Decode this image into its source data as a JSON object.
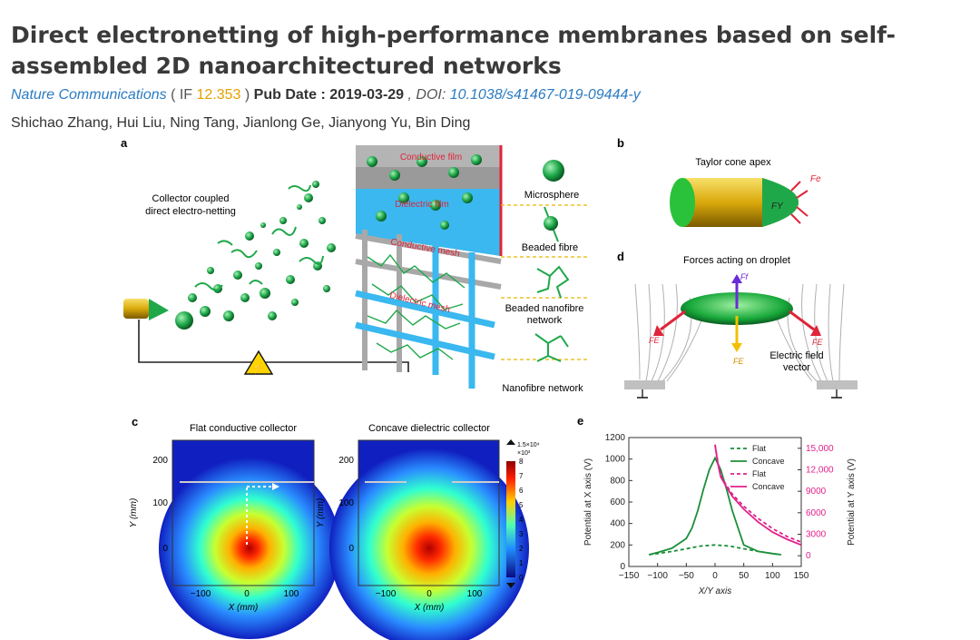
{
  "paper": {
    "title": "Direct electronetting of high-performance membranes based on self-assembled 2D nanoarchitectured networks",
    "journal": "Nature Communications",
    "if_open": " ( IF ",
    "impact_factor": "12.353",
    "if_close": " ) ",
    "pub_date_label": "Pub Date : 2019-03-29",
    "doi_label": " , DOI: ",
    "doi": "10.1038/s41467-019-09444-y",
    "authors": "Shichao Zhang, Hui Liu, Ning Tang, Jianlong Ge, Jianyong Yu, Bin Ding"
  },
  "figure": {
    "panel_a": {
      "letter": "a",
      "collector_label_1": "Collector coupled",
      "collector_label_2": "direct electro-netting",
      "layer_1": "Conductive film",
      "layer_2": "Dielectric film",
      "layer_3": "Conductive mesh",
      "layer_4": "Dielectric mesh",
      "legend_1": "Microsphere",
      "legend_2": "Beaded fibre",
      "legend_3a": "Beaded nanofibre",
      "legend_3b": "network",
      "legend_4": "Nanofibre network"
    },
    "panel_b": {
      "letter": "b",
      "label": "Taylor cone apex",
      "fe": "Fe",
      "fy": "FY"
    },
    "panel_d": {
      "letter": "d",
      "label": "Forces acting on droplet",
      "ff": "Ff",
      "fe_left": "FE",
      "fe_right": "FE",
      "fe_down": "FE",
      "field_1": "Electric field",
      "field_2": "vector"
    },
    "panel_c": {
      "letter": "c",
      "left_title": "Flat conductive collector",
      "right_title": "Concave dielectric collector",
      "ylabel": "Y (mm)",
      "xlabel": "X (mm)",
      "yticks": [
        "200",
        "100",
        "0"
      ],
      "xticks": [
        "−100",
        "0",
        "100"
      ],
      "colorbar_top": "1.5×10⁴",
      "colorbar_exp": "×10³",
      "colorbar_ticks": [
        "8",
        "7",
        "6",
        "5",
        "4",
        "3",
        "2",
        "1",
        "0"
      ]
    }
  },
  "chart_data": {
    "type": "line",
    "panel_letter": "e",
    "title": "",
    "xlabel": "X/Y axis",
    "ylabel_left": "Potential at X axis (V)",
    "ylabel_right": "Potential at Y axis (V)",
    "xlim": [
      -150,
      150
    ],
    "ylim_left": [
      0,
      1200
    ],
    "ylim_right": [
      -1500,
      16500
    ],
    "xticks": [
      "−150",
      "−100",
      "−50",
      "0",
      "50",
      "100",
      "150"
    ],
    "yticks_left": [
      "0",
      "200",
      "400",
      "600",
      "800",
      "1000",
      "1200"
    ],
    "yticks_right": [
      "0",
      "3000",
      "6000",
      "9000",
      "12,000",
      "15,000"
    ],
    "colors": {
      "x_axis": "#1b8f3a",
      "y_axis": "#e0218a"
    },
    "series": [
      {
        "name": "Flat",
        "axis": "left",
        "style": "dashed",
        "color": "#1b8f3a",
        "x": [
          -115,
          -100,
          -75,
          -50,
          -25,
          0,
          25,
          50,
          75,
          100,
          115
        ],
        "y": [
          110,
          120,
          140,
          165,
          190,
          200,
          190,
          165,
          140,
          120,
          110
        ]
      },
      {
        "name": "Concave",
        "axis": "left",
        "style": "solid",
        "color": "#1b8f3a",
        "x": [
          -115,
          -100,
          -75,
          -50,
          -40,
          -30,
          -20,
          -10,
          0,
          10,
          20,
          30,
          40,
          50,
          75,
          100,
          115
        ],
        "y": [
          110,
          130,
          170,
          260,
          360,
          520,
          720,
          900,
          1010,
          900,
          720,
          520,
          360,
          200,
          140,
          120,
          110
        ]
      },
      {
        "name": "Flat",
        "axis": "right",
        "style": "dashed",
        "color": "#e0218a",
        "x": [
          0,
          5,
          10,
          20,
          30,
          50,
          75,
          100,
          125,
          150
        ],
        "y": [
          15500,
          13000,
          11200,
          9800,
          8600,
          6900,
          5200,
          3800,
          2700,
          1900
        ]
      },
      {
        "name": "Concave",
        "axis": "right",
        "style": "solid",
        "color": "#e0218a",
        "x": [
          0,
          5,
          10,
          20,
          30,
          50,
          75,
          100,
          125,
          150
        ],
        "y": [
          15500,
          12800,
          11000,
          9600,
          8300,
          6500,
          4700,
          3300,
          2300,
          1500
        ]
      }
    ],
    "legend": [
      "Flat",
      "Concave",
      "Flat",
      "Concave"
    ]
  }
}
